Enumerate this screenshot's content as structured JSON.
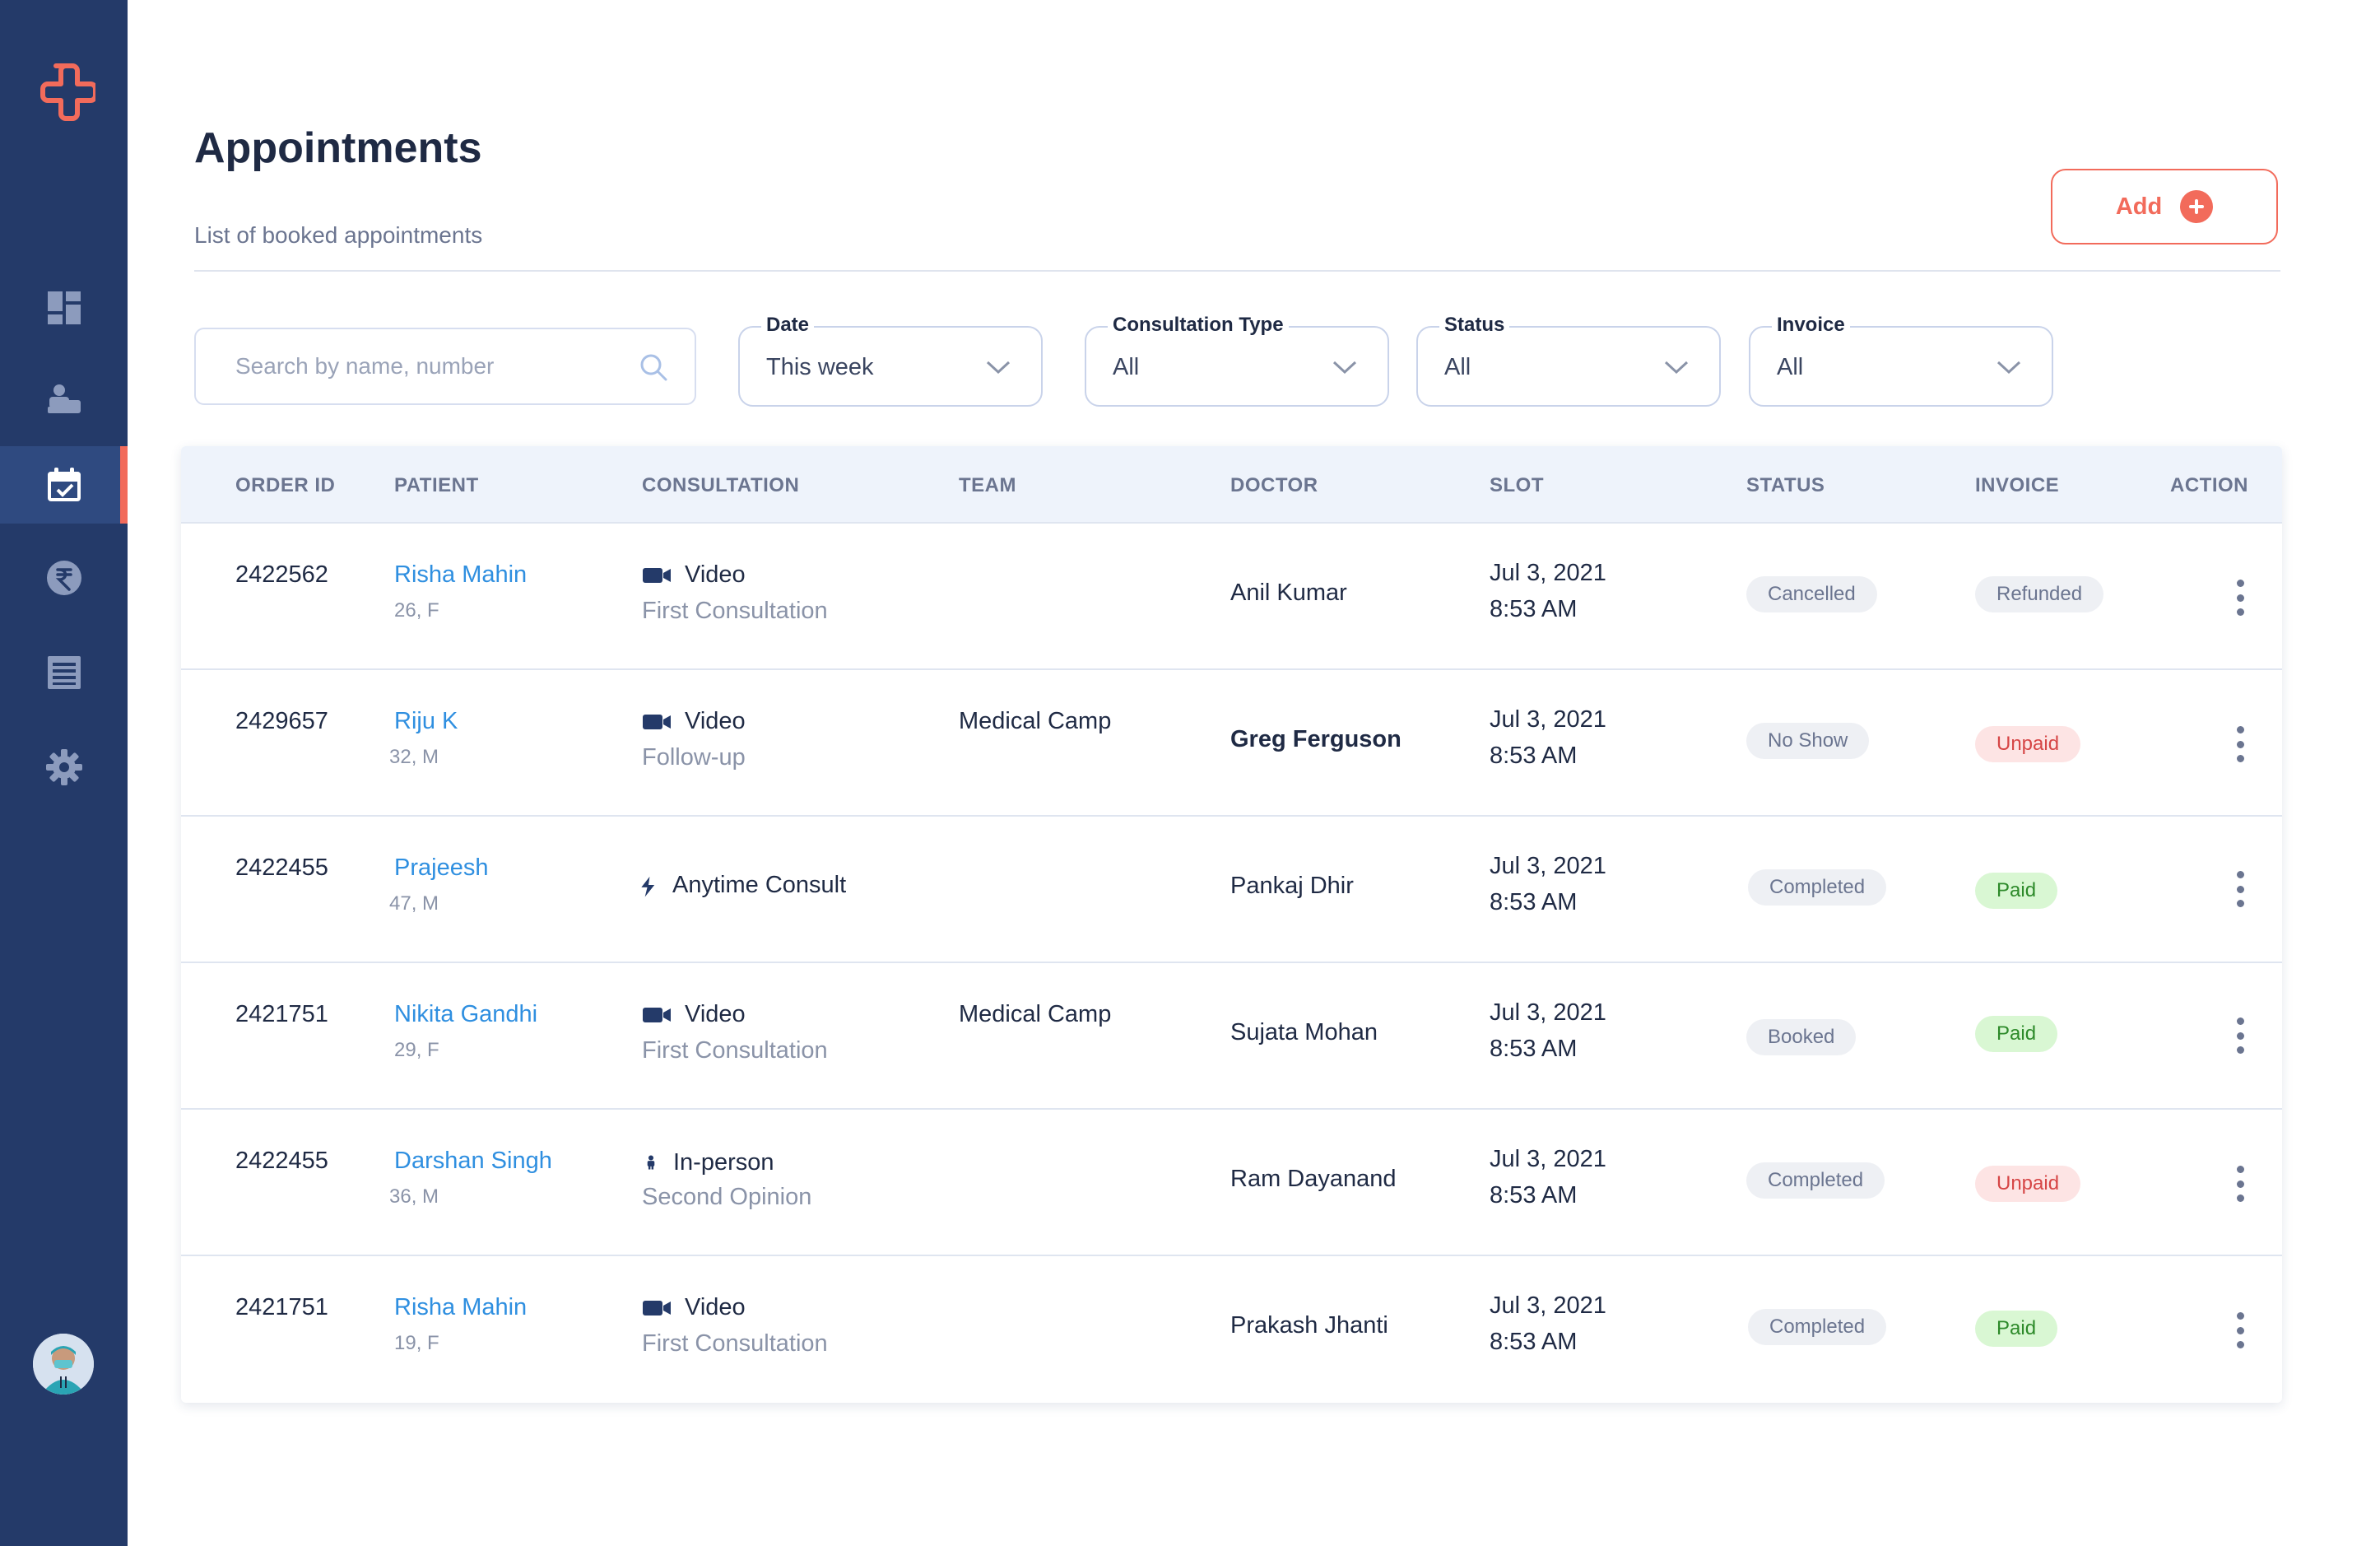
{
  "header": {
    "title": "Appointments",
    "subtitle": "List of booked appointments",
    "add_label": "Add"
  },
  "sidebar": {
    "items": [
      {
        "icon": "dashboard-icon"
      },
      {
        "icon": "patients-icon"
      },
      {
        "icon": "calendar-icon",
        "active": true
      },
      {
        "icon": "rupee-icon"
      },
      {
        "icon": "list-icon"
      },
      {
        "icon": "gear-icon"
      }
    ]
  },
  "search": {
    "placeholder": "Search by name, number"
  },
  "filters": {
    "date": {
      "label": "Date",
      "value": "This week"
    },
    "consultation_type": {
      "label": "Consultation Type",
      "value": "All"
    },
    "status": {
      "label": "Status",
      "value": "All"
    },
    "invoice": {
      "label": "Invoice",
      "value": "All"
    }
  },
  "table": {
    "columns": [
      "ORDER ID",
      "PATIENT",
      "CONSULTATION",
      "TEAM",
      "DOCTOR",
      "SLOT",
      "STATUS",
      "INVOICE",
      "ACTION"
    ],
    "rows": [
      {
        "order_id": "2422562",
        "patient": "Risha Mahin",
        "meta": "26, F",
        "ctype": "Video",
        "csub": "First Consultation",
        "team": "",
        "doctor": "Anil Kumar",
        "date": "Jul 3, 2021",
        "time": "8:53 AM",
        "status": "Cancelled",
        "invoice": "Refunded"
      },
      {
        "order_id": "2429657",
        "patient": "Riju K",
        "meta": "32, M",
        "ctype": "Video",
        "csub": "Follow-up",
        "team": "Medical Camp",
        "doctor": "Greg Ferguson",
        "date": "Jul 3, 2021",
        "time": "8:53 AM",
        "status": "No Show",
        "invoice": "Unpaid"
      },
      {
        "order_id": "2422455",
        "patient": "Prajeesh",
        "meta": "47, M",
        "ctype": "Anytime Consult",
        "csub": "",
        "team": "",
        "doctor": "Pankaj Dhir",
        "date": "Jul 3, 2021",
        "time": "8:53 AM",
        "status": "Completed",
        "invoice": "Paid"
      },
      {
        "order_id": "2421751",
        "patient": "Nikita Gandhi",
        "meta": "29, F",
        "ctype": "Video",
        "csub": "First Consultation",
        "team": "Medical Camp",
        "doctor": "Sujata Mohan",
        "date": "Jul 3, 2021",
        "time": "8:53 AM",
        "status": "Booked",
        "invoice": "Paid"
      },
      {
        "order_id": "2422455",
        "patient": "Darshan Singh",
        "meta": "36, M",
        "ctype": "In-person",
        "csub": "Second Opinion",
        "team": "",
        "doctor": "Ram Dayanand",
        "date": "Jul 3, 2021",
        "time": "8:53 AM",
        "status": "Completed",
        "invoice": "Unpaid"
      },
      {
        "order_id": "2421751",
        "patient": "Risha Mahin",
        "meta": "19, F",
        "ctype": "Video",
        "csub": "First Consultation",
        "team": "",
        "doctor": "Prakash Jhanti",
        "date": "Jul 3, 2021",
        "time": "8:53 AM",
        "status": "Completed",
        "invoice": "Paid"
      }
    ]
  },
  "colors": {
    "sidebar": "#243a69",
    "accent": "#f26b5b",
    "link": "#2f8fe0",
    "paid": "#2d8a2a",
    "unpaid": "#d64545"
  }
}
